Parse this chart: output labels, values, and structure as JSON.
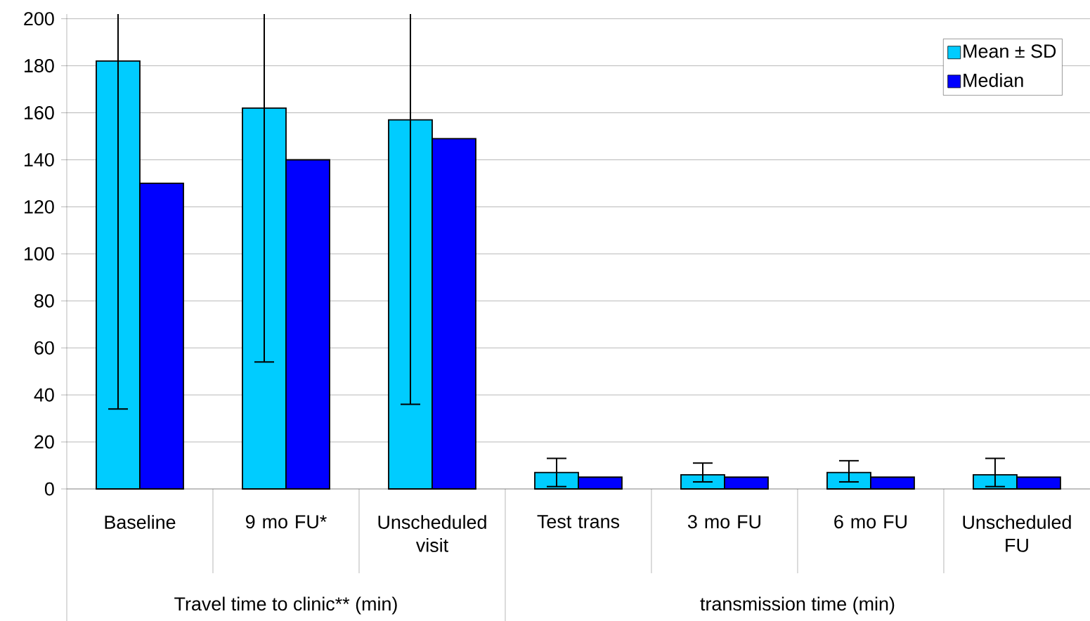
{
  "chart_data": {
    "type": "bar",
    "categories": [
      "Baseline",
      "9 mo FU*",
      "Unscheduled visit",
      "Test trans",
      "3 mo FU",
      "6 mo FU",
      "Unscheduled FU"
    ],
    "series": [
      {
        "name": "Mean ± SD",
        "color": "#00ccff",
        "values": [
          182,
          162,
          157,
          7,
          6,
          7,
          6
        ],
        "errors": [
          [
            34,
            202
          ],
          [
            54,
            202
          ],
          [
            36,
            202
          ],
          [
            1,
            13
          ],
          [
            3,
            11
          ],
          [
            3,
            12
          ],
          [
            1,
            13
          ]
        ]
      },
      {
        "name": "Median",
        "color": "#0000ff",
        "values": [
          130,
          140,
          149,
          5,
          5,
          5,
          5
        ]
      }
    ],
    "annotations": [
      "Travel time to clinic** (min)",
      "transmission time (min)"
    ],
    "ylim": [
      0,
      202
    ],
    "yticks": [
      0,
      20,
      40,
      60,
      80,
      100,
      120,
      140,
      160,
      180,
      200
    ],
    "grid": "y",
    "legend": "top right"
  }
}
